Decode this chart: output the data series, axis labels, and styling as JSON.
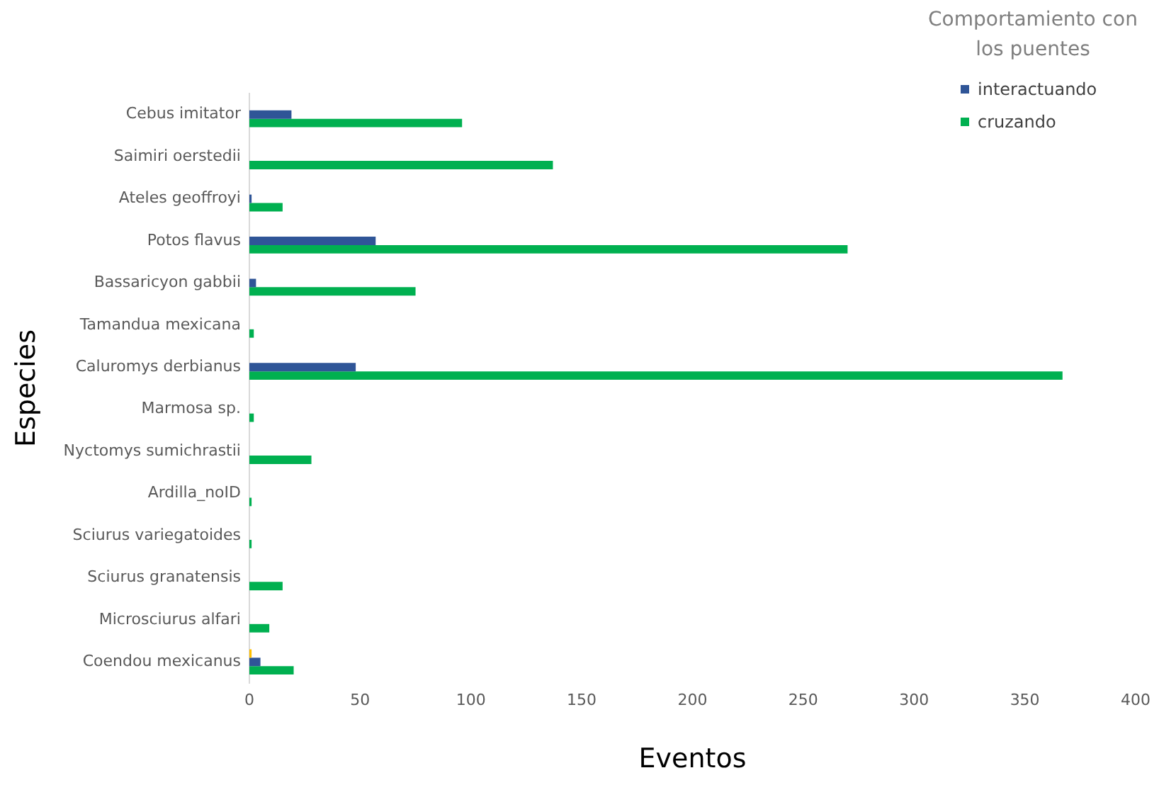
{
  "chart_data": {
    "type": "bar",
    "orientation": "horizontal",
    "xlabel": "Eventos",
    "ylabel": "Especies",
    "legend_title": "Comportamiento con los puentes",
    "legend": "top right",
    "grid": false,
    "categories": [
      "Cebus imitator",
      "Saimiri oerstedii",
      "Ateles geoffroyi",
      "Potos flavus",
      "Bassaricyon gabbii",
      "Tamandua mexicana",
      "Caluromys derbianus",
      "Marmosa sp.",
      "Nyctomys sumichrastii",
      "Ardilla_noID",
      "Sciurus variegatoides",
      "Sciurus granatensis",
      "Microsciurus alfari",
      "Coendou mexicanus"
    ],
    "series": [
      {
        "color": "#ffc000",
        "values": [
          null,
          null,
          null,
          null,
          null,
          null,
          null,
          null,
          null,
          null,
          null,
          null,
          null,
          1
        ]
      },
      {
        "name": "interactuando",
        "color": "#2f5597",
        "values": [
          19,
          null,
          1,
          57,
          3,
          null,
          48,
          null,
          null,
          null,
          null,
          null,
          null,
          5
        ]
      },
      {
        "name": "cruzando",
        "color": "#00b050",
        "values": [
          96,
          137,
          15,
          270,
          75,
          2,
          367,
          2,
          28,
          1,
          1,
          15,
          9,
          20
        ]
      }
    ],
    "xlim": [
      0,
      400
    ],
    "xticks": [
      0,
      50,
      100,
      150,
      200,
      250,
      300,
      350,
      400
    ]
  }
}
